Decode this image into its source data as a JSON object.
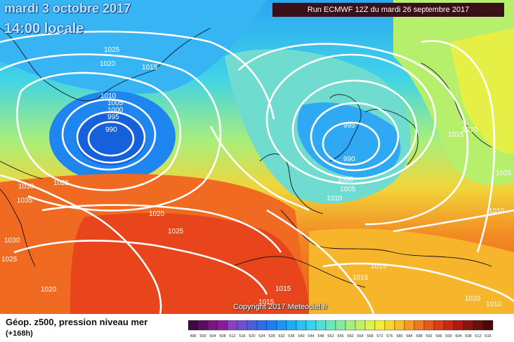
{
  "header": {
    "date": "mardi 3 octobre 2017",
    "time": "14:00 locale",
    "run": "Run ECMWF 12Z du mardi 26 septembre 2017"
  },
  "map": {
    "isobar_labels": [
      "1025",
      "1020",
      "1015",
      "1010",
      "1005",
      "1000",
      "995",
      "990",
      "1030",
      "1025",
      "1035",
      "1030",
      "1025",
      "1020",
      "1020",
      "1025",
      "995",
      "990",
      "1000",
      "1005",
      "1010",
      "1015",
      "1020",
      "1025",
      "1010",
      "1015",
      "1015",
      "1015",
      "1015",
      "1020",
      "1010"
    ]
  },
  "copyright": "Copyright 2017 Meteociel.fr",
  "legend": {
    "title": "Géop. z500, pression niveau mer",
    "subtitle": "(+168h)",
    "scale_labels": [
      "496",
      "500",
      "504",
      "508",
      "512",
      "516",
      "520",
      "524",
      "528",
      "532",
      "536",
      "540",
      "544",
      "548",
      "552",
      "556",
      "560",
      "564",
      "568",
      "572",
      "576",
      "580",
      "584",
      "588",
      "592",
      "596",
      "600",
      "604",
      "608",
      "612",
      "616"
    ],
    "scale_colors": [
      "#3b0a3f",
      "#5a0f5e",
      "#7a147e",
      "#8c1aa0",
      "#8b3fc4",
      "#6d4fd0",
      "#4560da",
      "#2f6be6",
      "#1f7ff2",
      "#1a94f7",
      "#22aaf7",
      "#2cbff3",
      "#3ad2ee",
      "#4fe0dc",
      "#6ae7bd",
      "#85eba0",
      "#a2ef82",
      "#bff168",
      "#daf252",
      "#f0ee3e",
      "#f8d632",
      "#f8bb2b",
      "#f49b24",
      "#ee7b1f",
      "#e55b1a",
      "#d93f17",
      "#c72a14",
      "#ad1c12",
      "#8c1410",
      "#6a0e0c",
      "#4a0906"
    ]
  }
}
